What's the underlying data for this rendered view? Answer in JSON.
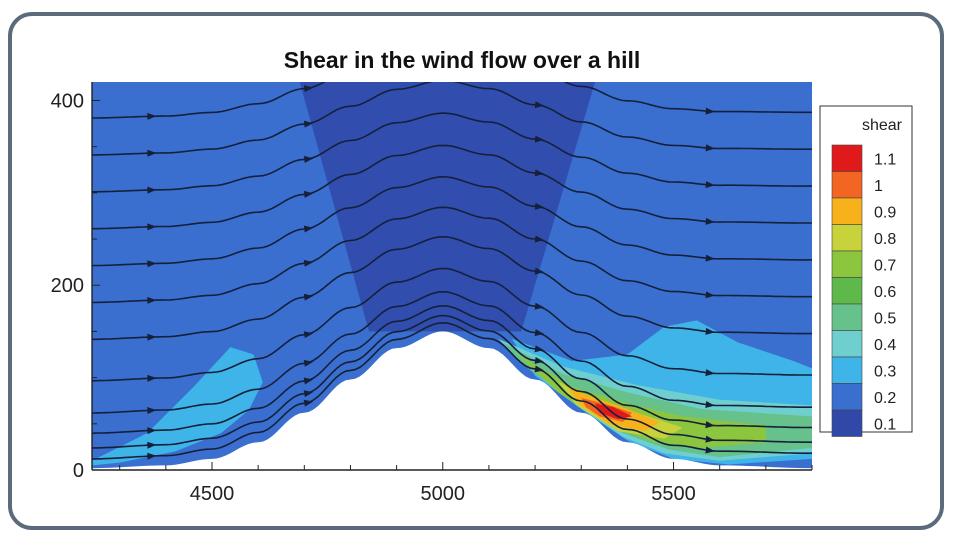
{
  "chart_data": {
    "type": "heatmap",
    "title": "Shear in the wind flow over a hill",
    "xlabel": "",
    "ylabel": "",
    "xlim": [
      4240,
      5800
    ],
    "ylim": [
      0,
      420
    ],
    "x_ticks": [
      "4500",
      "5000",
      "5500"
    ],
    "x_tick_values": [
      4500,
      5000,
      5500
    ],
    "y_ticks": [
      "0",
      "200",
      "400"
    ],
    "y_tick_values": [
      0,
      200,
      400
    ],
    "terrain": {
      "peak_x": 5000,
      "peak_height": 150,
      "profile": [
        [
          4240,
          2
        ],
        [
          4400,
          5
        ],
        [
          4500,
          12
        ],
        [
          4600,
          30
        ],
        [
          4700,
          62
        ],
        [
          4800,
          98
        ],
        [
          4900,
          132
        ],
        [
          5000,
          150
        ],
        [
          5100,
          132
        ],
        [
          5200,
          98
        ],
        [
          5300,
          62
        ],
        [
          5400,
          30
        ],
        [
          5500,
          12
        ],
        [
          5600,
          5
        ],
        [
          5800,
          2
        ]
      ]
    },
    "legend": {
      "title": "shear",
      "placement": "right",
      "levels": [
        {
          "label": "1.1",
          "value": 1.1,
          "color": "#e01a1a"
        },
        {
          "label": "1",
          "value": 1.0,
          "color": "#f26522"
        },
        {
          "label": "0.9",
          "value": 0.9,
          "color": "#f7b21b"
        },
        {
          "label": "0.8",
          "value": 0.8,
          "color": "#c8d23a"
        },
        {
          "label": "0.7",
          "value": 0.7,
          "color": "#8cc63f"
        },
        {
          "label": "0.6",
          "value": 0.6,
          "color": "#5fb94a"
        },
        {
          "label": "0.5",
          "value": 0.5,
          "color": "#66c28a"
        },
        {
          "label": "0.4",
          "value": 0.4,
          "color": "#6fcfcf"
        },
        {
          "label": "0.3",
          "value": 0.3,
          "color": "#3fb4e8"
        },
        {
          "label": "0.2",
          "value": 0.2,
          "color": "#3a6fd0"
        },
        {
          "label": "0.1",
          "value": 0.1,
          "color": "#3049a8"
        }
      ]
    },
    "background_level": 0.2,
    "central_band_level": 0.1,
    "regions": [
      {
        "level": 0.3,
        "points": [
          [
            4240,
            10
          ],
          [
            4360,
            40
          ],
          [
            4460,
            90
          ],
          [
            4540,
            133
          ],
          [
            4590,
            125
          ],
          [
            4610,
            95
          ],
          [
            4580,
            65
          ],
          [
            4520,
            40
          ],
          [
            4420,
            20
          ],
          [
            4300,
            8
          ],
          [
            4240,
            5
          ]
        ]
      },
      {
        "level": 0.3,
        "points": [
          [
            5150,
            142
          ],
          [
            5280,
            118
          ],
          [
            5400,
            125
          ],
          [
            5480,
            155
          ],
          [
            5550,
            162
          ],
          [
            5640,
            138
          ],
          [
            5760,
            118
          ],
          [
            5800,
            110
          ],
          [
            5800,
            12
          ],
          [
            5620,
            6
          ],
          [
            5500,
            12
          ],
          [
            5400,
            32
          ],
          [
            5300,
            66
          ],
          [
            5200,
            102
          ]
        ]
      },
      {
        "level": 0.4,
        "points": [
          [
            5120,
            142
          ],
          [
            5260,
            112
          ],
          [
            5420,
            92
          ],
          [
            5600,
            76
          ],
          [
            5800,
            70
          ],
          [
            5800,
            18
          ],
          [
            5600,
            10
          ],
          [
            5480,
            18
          ],
          [
            5390,
            36
          ],
          [
            5290,
            70
          ],
          [
            5190,
            108
          ]
        ]
      },
      {
        "level": 0.5,
        "points": [
          [
            5130,
            138
          ],
          [
            5260,
            104
          ],
          [
            5400,
            84
          ],
          [
            5560,
            66
          ],
          [
            5800,
            58
          ],
          [
            5800,
            24
          ],
          [
            5600,
            14
          ],
          [
            5490,
            22
          ],
          [
            5390,
            40
          ],
          [
            5280,
            74
          ],
          [
            5170,
            116
          ]
        ]
      },
      {
        "level": 0.7,
        "points": [
          [
            5160,
            126
          ],
          [
            5280,
            90
          ],
          [
            5400,
            72
          ],
          [
            5520,
            58
          ],
          [
            5700,
            48
          ],
          [
            5700,
            30
          ],
          [
            5560,
            24
          ],
          [
            5460,
            30
          ],
          [
            5360,
            48
          ],
          [
            5250,
            84
          ]
        ]
      },
      {
        "level": 0.8,
        "points": [
          [
            5250,
            96
          ],
          [
            5320,
            76
          ],
          [
            5420,
            62
          ],
          [
            5520,
            46
          ],
          [
            5480,
            34
          ],
          [
            5380,
            42
          ],
          [
            5290,
            70
          ]
        ]
      },
      {
        "level": 0.9,
        "points": [
          [
            5270,
            90
          ],
          [
            5320,
            80
          ],
          [
            5400,
            66
          ],
          [
            5470,
            52
          ],
          [
            5440,
            42
          ],
          [
            5360,
            50
          ],
          [
            5300,
            70
          ]
        ]
      },
      {
        "level": 1.0,
        "points": [
          [
            5300,
            78
          ],
          [
            5350,
            72
          ],
          [
            5410,
            62
          ],
          [
            5390,
            52
          ],
          [
            5340,
            58
          ],
          [
            5310,
            68
          ]
        ]
      },
      {
        "level": 1.1,
        "points": [
          [
            5330,
            72
          ],
          [
            5370,
            68
          ],
          [
            5410,
            58
          ],
          [
            5380,
            55
          ],
          [
            5340,
            62
          ]
        ]
      }
    ],
    "streamlines": [
      {
        "height": 10
      },
      {
        "height": 22
      },
      {
        "height": 38
      },
      {
        "height": 60
      },
      {
        "height": 95
      },
      {
        "height": 140
      },
      {
        "height": 180
      },
      {
        "height": 220
      },
      {
        "height": 260
      },
      {
        "height": 300
      },
      {
        "height": 340
      },
      {
        "height": 380
      }
    ],
    "grid": false
  },
  "colors": {
    "frame": "#5b6b7c",
    "streamline": "#15203a",
    "terrain": "#ffffff"
  }
}
